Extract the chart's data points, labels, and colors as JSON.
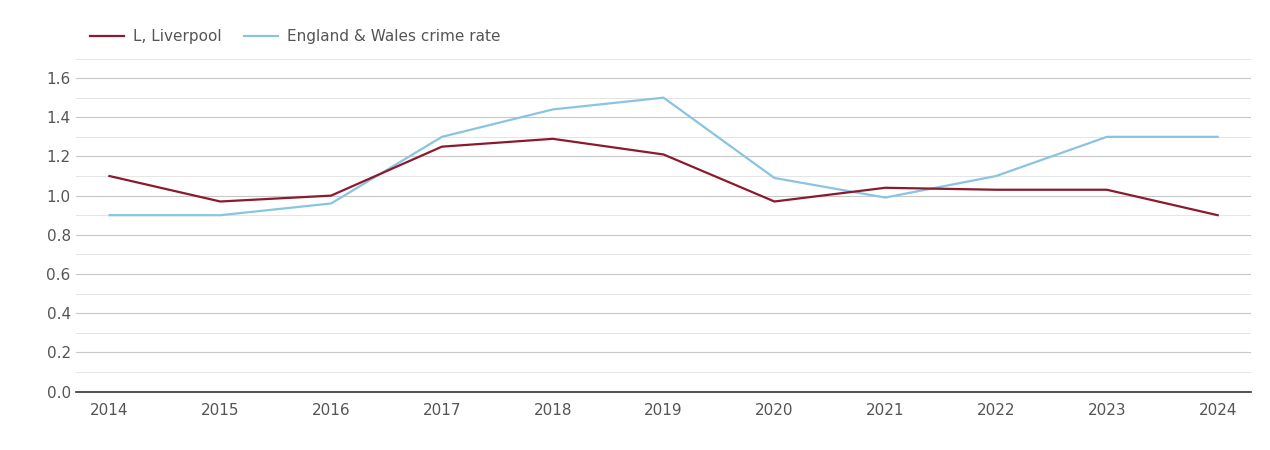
{
  "years": [
    2014,
    2015,
    2016,
    2017,
    2018,
    2019,
    2020,
    2021,
    2022,
    2023,
    2024
  ],
  "liverpool": [
    1.1,
    0.97,
    1.0,
    1.25,
    1.29,
    1.21,
    0.97,
    1.04,
    1.03,
    1.03,
    0.9
  ],
  "england_wales": [
    0.9,
    0.9,
    0.96,
    1.3,
    1.44,
    1.5,
    1.09,
    0.99,
    1.1,
    1.3,
    1.3
  ],
  "liverpool_color": "#8B1A2E",
  "england_wales_color": "#89C4E1",
  "background_color": "#ffffff",
  "major_grid_color": "#c8c8c8",
  "minor_grid_color": "#e0e0e0",
  "legend_labels": [
    "L, Liverpool",
    "England & Wales crime rate"
  ],
  "ylim": [
    0.0,
    1.7
  ],
  "yticks_major": [
    0.0,
    0.2,
    0.4,
    0.6,
    0.8,
    1.0,
    1.2,
    1.4,
    1.6
  ],
  "line_width": 1.6,
  "tick_fontsize": 11,
  "legend_fontsize": 11,
  "label_color": "#555555"
}
